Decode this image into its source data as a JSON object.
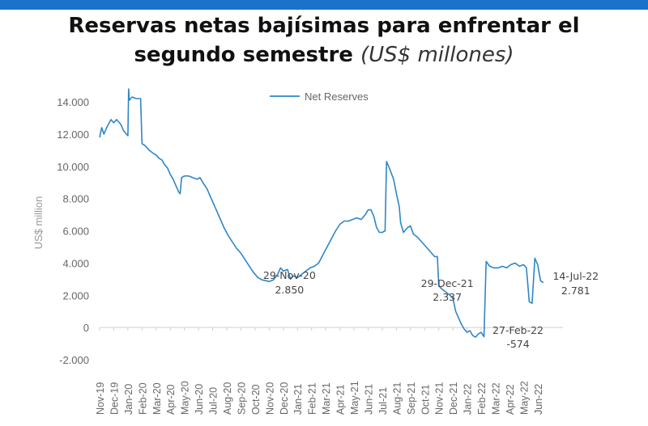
{
  "title": {
    "line1": "Reservas netas bajísimas para enfrentar el",
    "line2": "segundo semestre",
    "unit": "(US$ millones)"
  },
  "chart_data": {
    "type": "line",
    "ylabel": "US$ million",
    "ylim": [
      -2000,
      14000
    ],
    "yticks": [
      14000,
      12000,
      10000,
      8000,
      6000,
      4000,
      2000,
      0,
      -2000
    ],
    "ytick_labels": [
      "14.000",
      "12.000",
      "10.000",
      "8.000",
      "6.000",
      "4.000",
      "2.000",
      "0",
      "-2.000"
    ],
    "x_months": [
      "Nov-19",
      "Dec-19",
      "Jan-20",
      "Feb-20",
      "Mar-20",
      "Apr-20",
      "May-20",
      "Jun-20",
      "Jul-20",
      "Aug-20",
      "Sep-20",
      "Oct-20",
      "Nov-20",
      "Dec-20",
      "Jan-21",
      "Feb-21",
      "Mar-21",
      "Apr-21",
      "May-21",
      "Jun-21",
      "Jul-21",
      "Aug-21",
      "Sep-21",
      "Oct-21",
      "Nov-21",
      "Dec-21",
      "Jan-22",
      "Feb-22",
      "Mar-22",
      "Apr-22",
      "May-22",
      "Jun-22"
    ],
    "x_end": 32.5,
    "legend": "Net Reserves",
    "series": [
      {
        "name": "Net Reserves",
        "color": "#2e86c8",
        "points": [
          [
            0,
            11800
          ],
          [
            0.15,
            12400
          ],
          [
            0.3,
            12000
          ],
          [
            0.5,
            12400
          ],
          [
            0.8,
            12900
          ],
          [
            1.0,
            12700
          ],
          [
            1.2,
            12900
          ],
          [
            1.5,
            12600
          ],
          [
            1.7,
            12200
          ],
          [
            1.9,
            12000
          ],
          [
            2.0,
            11900
          ],
          [
            2.05,
            14800
          ],
          [
            2.1,
            14100
          ],
          [
            2.3,
            14300
          ],
          [
            2.6,
            14200
          ],
          [
            2.9,
            14200
          ],
          [
            3.0,
            11400
          ],
          [
            3.2,
            11300
          ],
          [
            3.5,
            11000
          ],
          [
            3.8,
            10800
          ],
          [
            4.0,
            10700
          ],
          [
            4.2,
            10500
          ],
          [
            4.4,
            10400
          ],
          [
            4.6,
            10100
          ],
          [
            4.8,
            9900
          ],
          [
            5.0,
            9500
          ],
          [
            5.2,
            9200
          ],
          [
            5.4,
            8800
          ],
          [
            5.6,
            8400
          ],
          [
            5.7,
            8300
          ],
          [
            5.8,
            9300
          ],
          [
            6.0,
            9400
          ],
          [
            6.3,
            9400
          ],
          [
            6.6,
            9300
          ],
          [
            6.9,
            9200
          ],
          [
            7.1,
            9300
          ],
          [
            7.3,
            9000
          ],
          [
            7.6,
            8600
          ],
          [
            7.9,
            8000
          ],
          [
            8.2,
            7400
          ],
          [
            8.5,
            6800
          ],
          [
            8.8,
            6200
          ],
          [
            9.1,
            5700
          ],
          [
            9.4,
            5300
          ],
          [
            9.7,
            4900
          ],
          [
            10.0,
            4600
          ],
          [
            10.3,
            4200
          ],
          [
            10.6,
            3800
          ],
          [
            10.9,
            3400
          ],
          [
            11.2,
            3100
          ],
          [
            11.5,
            2950
          ],
          [
            11.8,
            2900
          ],
          [
            12.0,
            2850
          ],
          [
            12.3,
            2950
          ],
          [
            12.6,
            3300
          ],
          [
            12.8,
            3700
          ],
          [
            13.0,
            3500
          ],
          [
            13.3,
            3600
          ],
          [
            13.5,
            3000
          ],
          [
            13.7,
            3200
          ],
          [
            14.0,
            3100
          ],
          [
            14.3,
            3300
          ],
          [
            14.6,
            3500
          ],
          [
            14.9,
            3700
          ],
          [
            15.2,
            3800
          ],
          [
            15.5,
            4000
          ],
          [
            15.8,
            4500
          ],
          [
            16.1,
            5000
          ],
          [
            16.4,
            5500
          ],
          [
            16.7,
            6000
          ],
          [
            17.0,
            6400
          ],
          [
            17.3,
            6600
          ],
          [
            17.6,
            6600
          ],
          [
            17.9,
            6700
          ],
          [
            18.2,
            6800
          ],
          [
            18.5,
            6700
          ],
          [
            18.8,
            7000
          ],
          [
            19.0,
            7300
          ],
          [
            19.2,
            7300
          ],
          [
            19.4,
            6900
          ],
          [
            19.6,
            6200
          ],
          [
            19.8,
            5900
          ],
          [
            20.0,
            5900
          ],
          [
            20.2,
            6000
          ],
          [
            20.3,
            10300
          ],
          [
            20.5,
            9900
          ],
          [
            20.8,
            9200
          ],
          [
            21.0,
            8300
          ],
          [
            21.2,
            7500
          ],
          [
            21.3,
            6500
          ],
          [
            21.5,
            5900
          ],
          [
            21.8,
            6200
          ],
          [
            22.0,
            6300
          ],
          [
            22.2,
            5800
          ],
          [
            22.5,
            5600
          ],
          [
            22.8,
            5300
          ],
          [
            23.1,
            5000
          ],
          [
            23.4,
            4700
          ],
          [
            23.7,
            4400
          ],
          [
            23.9,
            4400
          ],
          [
            24.0,
            2600
          ],
          [
            24.2,
            2400
          ],
          [
            24.5,
            2200
          ],
          [
            24.8,
            2000
          ],
          [
            25.0,
            1800
          ],
          [
            25.2,
            1000
          ],
          [
            25.4,
            600
          ],
          [
            25.6,
            200
          ],
          [
            25.8,
            -100
          ],
          [
            26.0,
            -300
          ],
          [
            26.2,
            -200
          ],
          [
            26.4,
            -500
          ],
          [
            26.6,
            -600
          ],
          [
            26.8,
            -400
          ],
          [
            27.0,
            -300
          ],
          [
            27.2,
            -574
          ],
          [
            27.35,
            4100
          ],
          [
            27.6,
            3800
          ],
          [
            27.9,
            3700
          ],
          [
            28.2,
            3700
          ],
          [
            28.5,
            3800
          ],
          [
            28.8,
            3700
          ],
          [
            29.1,
            3900
          ],
          [
            29.4,
            4000
          ],
          [
            29.7,
            3800
          ],
          [
            30.0,
            3900
          ],
          [
            30.2,
            3700
          ],
          [
            30.4,
            1600
          ],
          [
            30.6,
            1500
          ],
          [
            30.8,
            4300
          ],
          [
            31.0,
            3900
          ],
          [
            31.2,
            2900
          ],
          [
            31.4,
            2781
          ]
        ]
      }
    ],
    "annotations": [
      {
        "x": 12.0,
        "line1": "29-Nov-20",
        "line2": "2.850"
      },
      {
        "x": 24.6,
        "line1": "29-Dec-21",
        "line2": "2.337"
      },
      {
        "x": 27.2,
        "line1": "27-Feb-22",
        "line2": "-574"
      },
      {
        "x": 31.4,
        "line1": "14-Jul-22",
        "line2": "2.781"
      }
    ]
  }
}
